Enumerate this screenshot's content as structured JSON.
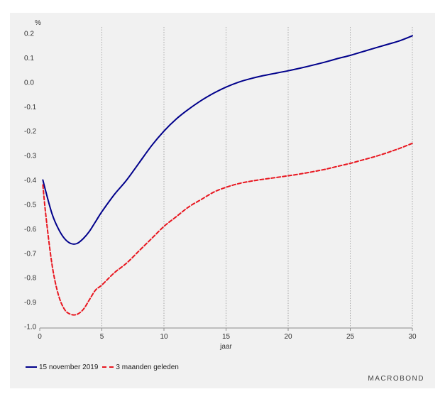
{
  "chart_data": {
    "type": "line",
    "ylabel": "%",
    "xlabel": "jaar",
    "xlim": [
      0,
      30
    ],
    "ylim": [
      -1.0,
      0.2
    ],
    "xticks": [
      0,
      5,
      10,
      15,
      20,
      25,
      30
    ],
    "yticks": [
      "0.2",
      "0.1",
      "0.0",
      "-0.1",
      "-0.2",
      "-0.3",
      "-0.4",
      "-0.5",
      "-0.6",
      "-0.7",
      "-0.8",
      "-0.9",
      "-1.0"
    ],
    "grid": "vertical dotted at x ticks",
    "legend_position": "bottom-left",
    "series": [
      {
        "name": "15 november 2019",
        "color": "#00008b",
        "style": "solid",
        "x": [
          0.25,
          0.5,
          1,
          1.5,
          2,
          2.5,
          3,
          3.5,
          4,
          4.5,
          5,
          6,
          7,
          8,
          9,
          10,
          11,
          12,
          13,
          14,
          15,
          16,
          17,
          18,
          19,
          20,
          21,
          22,
          23,
          24,
          25,
          26,
          27,
          28,
          29,
          30
        ],
        "values": [
          -0.4,
          -0.45,
          -0.54,
          -0.6,
          -0.64,
          -0.66,
          -0.66,
          -0.64,
          -0.61,
          -0.57,
          -0.53,
          -0.46,
          -0.4,
          -0.33,
          -0.26,
          -0.2,
          -0.15,
          -0.11,
          -0.075,
          -0.045,
          -0.02,
          0.0,
          0.015,
          0.027,
          0.037,
          0.047,
          0.058,
          0.07,
          0.083,
          0.097,
          0.11,
          0.125,
          0.14,
          0.155,
          0.17,
          0.19
        ]
      },
      {
        "name": "3 maanden geleden",
        "color": "#e8161f",
        "style": "dashed",
        "x": [
          0.25,
          0.5,
          1,
          1.5,
          2,
          2.5,
          3,
          3.5,
          4,
          4.5,
          5,
          6,
          7,
          8,
          9,
          10,
          11,
          12,
          13,
          14,
          15,
          16,
          17,
          18,
          19,
          20,
          21,
          22,
          23,
          24,
          25,
          26,
          27,
          28,
          29,
          30
        ],
        "values": [
          -0.42,
          -0.55,
          -0.75,
          -0.87,
          -0.93,
          -0.95,
          -0.95,
          -0.93,
          -0.89,
          -0.85,
          -0.83,
          -0.78,
          -0.74,
          -0.69,
          -0.64,
          -0.59,
          -0.55,
          -0.51,
          -0.48,
          -0.45,
          -0.43,
          -0.415,
          -0.405,
          -0.397,
          -0.39,
          -0.383,
          -0.375,
          -0.366,
          -0.356,
          -0.344,
          -0.332,
          -0.318,
          -0.304,
          -0.288,
          -0.27,
          -0.25
        ]
      }
    ]
  },
  "branding": {
    "logo_text": "MACROBOND"
  }
}
